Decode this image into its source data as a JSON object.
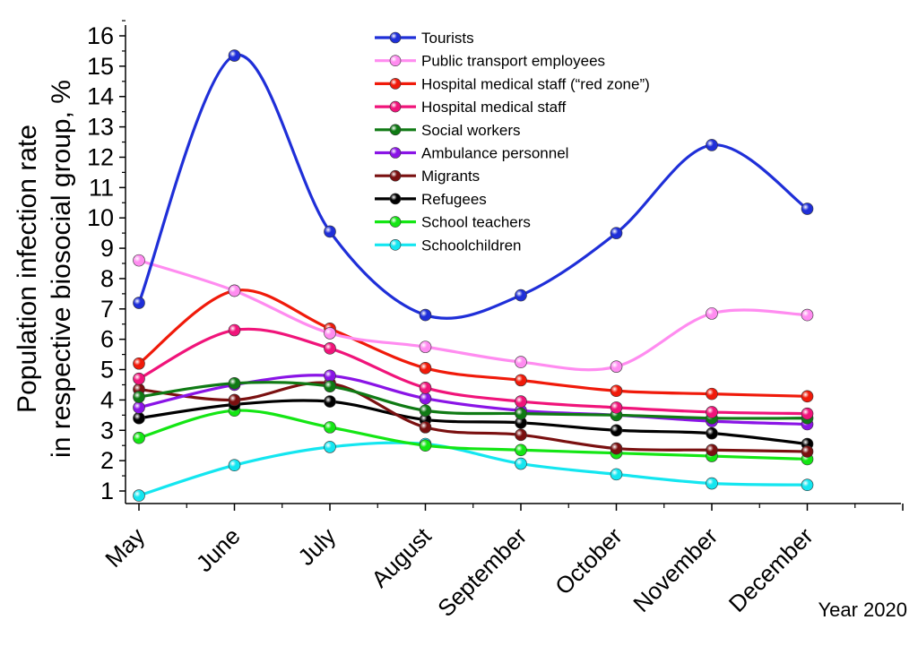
{
  "chart_data": {
    "type": "line",
    "title": "",
    "xlabel": "Year 2020",
    "ylabel_lines": [
      "Population infection rate",
      "in respective biosocial group, %"
    ],
    "categories": [
      "May",
      "June",
      "July",
      "August",
      "September",
      "October",
      "November",
      "December"
    ],
    "ylim": [
      0.5,
      16
    ],
    "yticks": [
      1,
      2,
      3,
      4,
      5,
      6,
      7,
      8,
      9,
      10,
      11,
      12,
      13,
      14,
      15,
      16
    ],
    "grid": false,
    "legend_position": "top",
    "smooth": true,
    "series": [
      {
        "name": "Tourists",
        "color": "#1f2fd8",
        "values": [
          7.2,
          15.35,
          9.55,
          6.8,
          7.45,
          9.5,
          12.4,
          10.3
        ]
      },
      {
        "name": "Public transport employees",
        "color": "#ff8cf0",
        "values": [
          8.6,
          7.6,
          6.2,
          5.75,
          5.25,
          5.1,
          6.85,
          6.8
        ]
      },
      {
        "name": "Hospital medical staff (“red zone”)",
        "color": "#f01a0a",
        "values": [
          5.2,
          7.6,
          6.35,
          5.05,
          4.65,
          4.3,
          4.2,
          4.12
        ]
      },
      {
        "name": "Hospital medical staff",
        "color": "#f0147a",
        "values": [
          4.7,
          6.3,
          5.7,
          4.4,
          3.95,
          3.75,
          3.6,
          3.55
        ]
      },
      {
        "name": "Social workers",
        "color": "#0f7a14",
        "values": [
          4.1,
          4.55,
          4.45,
          3.65,
          3.55,
          3.5,
          3.4,
          3.4
        ]
      },
      {
        "name": "Ambulance personnel",
        "color": "#8a14e6",
        "values": [
          3.75,
          4.5,
          4.8,
          4.05,
          3.65,
          3.5,
          3.3,
          3.2
        ]
      },
      {
        "name": "Migrants",
        "color": "#7a1010",
        "values": [
          4.35,
          4.0,
          4.55,
          3.1,
          2.85,
          2.4,
          2.35,
          2.3
        ]
      },
      {
        "name": "Refugees",
        "color": "#000000",
        "values": [
          3.4,
          3.85,
          3.95,
          3.35,
          3.25,
          3.0,
          2.9,
          2.55
        ]
      },
      {
        "name": "School teachers",
        "color": "#14e614",
        "values": [
          2.75,
          3.65,
          3.1,
          2.5,
          2.35,
          2.25,
          2.15,
          2.05
        ]
      },
      {
        "name": "Schoolchildren",
        "color": "#14e6f0",
        "values": [
          0.85,
          1.85,
          2.45,
          2.55,
          1.9,
          1.55,
          1.25,
          1.2
        ]
      }
    ]
  }
}
